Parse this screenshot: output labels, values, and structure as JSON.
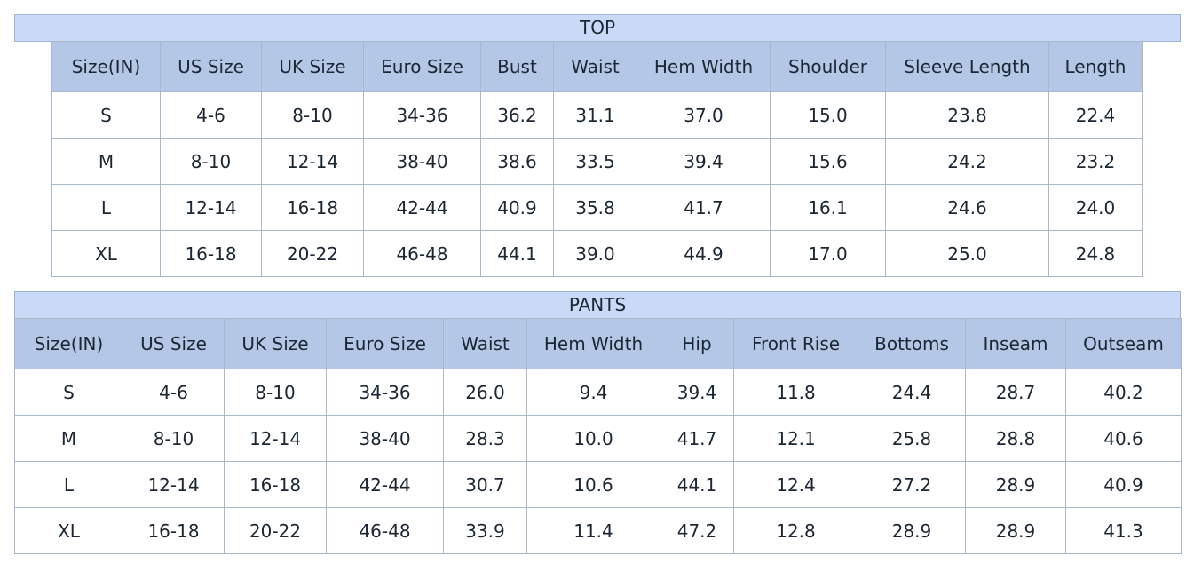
{
  "tables": [
    {
      "title": "TOP",
      "header": [
        "Size(IN)",
        "US Size",
        "UK Size",
        "Euro Size",
        "Bust",
        "Waist",
        "Hem Width",
        "Shoulder",
        "Sleeve Length",
        "Length"
      ],
      "rows": [
        [
          "S",
          "4-6",
          "8-10",
          "34-36",
          "36.2",
          "31.1",
          "37.0",
          "15.0",
          "23.8",
          "22.4"
        ],
        [
          "M",
          "8-10",
          "12-14",
          "38-40",
          "38.6",
          "33.5",
          "39.4",
          "15.6",
          "24.2",
          "23.2"
        ],
        [
          "L",
          "12-14",
          "16-18",
          "42-44",
          "40.9",
          "35.8",
          "41.7",
          "16.1",
          "24.6",
          "24.0"
        ],
        [
          "XL",
          "16-18",
          "20-22",
          "46-48",
          "44.1",
          "39.0",
          "44.9",
          "17.0",
          "25.0",
          "24.8"
        ]
      ]
    },
    {
      "title": "PANTS",
      "header": [
        "Size(IN)",
        "US Size",
        "UK Size",
        "Euro Size",
        "Waist",
        "Hem Width",
        "Hip",
        "Front Rise",
        "Bottoms",
        "Inseam",
        "Outseam"
      ],
      "rows": [
        [
          "S",
          "4-6",
          "8-10",
          "34-36",
          "26.0",
          "9.4",
          "39.4",
          "11.8",
          "24.4",
          "28.7",
          "40.2"
        ],
        [
          "M",
          "8-10",
          "12-14",
          "38-40",
          "28.3",
          "10.0",
          "41.7",
          "12.1",
          "25.8",
          "28.8",
          "40.6"
        ],
        [
          "L",
          "12-14",
          "16-18",
          "42-44",
          "30.7",
          "10.6",
          "44.1",
          "12.4",
          "27.2",
          "28.9",
          "40.9"
        ],
        [
          "XL",
          "16-18",
          "20-22",
          "46-48",
          "33.9",
          "11.4",
          "47.2",
          "12.8",
          "28.9",
          "28.9",
          "41.3"
        ]
      ]
    }
  ]
}
